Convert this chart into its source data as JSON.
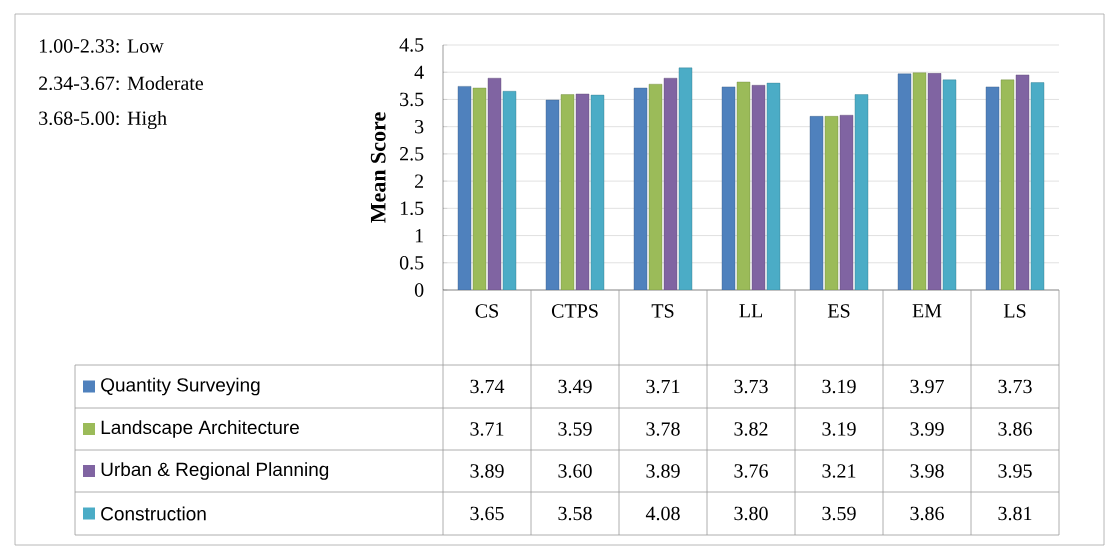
{
  "chart_data": {
    "type": "bar",
    "ylabel": "Mean Score",
    "categories": [
      "CS",
      "CTPS",
      "TS",
      "LL",
      "ES",
      "EM",
      "LS"
    ],
    "series": [
      {
        "name": "Quantity Surveying",
        "color": "#4f81bd",
        "values": [
          3.74,
          3.49,
          3.71,
          3.73,
          3.19,
          3.97,
          3.73
        ],
        "value_labels": [
          "3.74",
          "3.49",
          "3.71",
          "3.73",
          "3.19",
          "3.97",
          "3.73"
        ]
      },
      {
        "name": "Landscape Architecture",
        "color": "#9bbb59",
        "values": [
          3.71,
          3.59,
          3.78,
          3.82,
          3.19,
          3.99,
          3.86
        ],
        "value_labels": [
          "3.71",
          "3.59",
          "3.78",
          "3.82",
          "3.19",
          "3.99",
          "3.86"
        ]
      },
      {
        "name": "Urban & Regional Planning",
        "color": "#8064a2",
        "values": [
          3.89,
          3.6,
          3.89,
          3.76,
          3.21,
          3.98,
          3.95
        ],
        "value_labels": [
          "3.89",
          "3.60",
          "3.89",
          "3.76",
          "3.21",
          "3.98",
          "3.95"
        ]
      },
      {
        "name": "Construction",
        "color": "#4bacc6",
        "values": [
          3.65,
          3.58,
          4.08,
          3.8,
          3.59,
          3.86,
          3.81
        ],
        "value_labels": [
          "3.65",
          "3.58",
          "4.08",
          "3.80",
          "3.59",
          "3.86",
          "3.81"
        ]
      }
    ],
    "ylim": [
      0,
      4.5
    ],
    "yticks": [
      0,
      0.5,
      1,
      1.5,
      2,
      2.5,
      3,
      3.5,
      4,
      4.5
    ],
    "grid": "y",
    "legend": "bottom",
    "annotations": [
      "1.00-2.33: Low",
      "2.34-3.67: Moderate",
      "3.68-5.00: High"
    ]
  }
}
